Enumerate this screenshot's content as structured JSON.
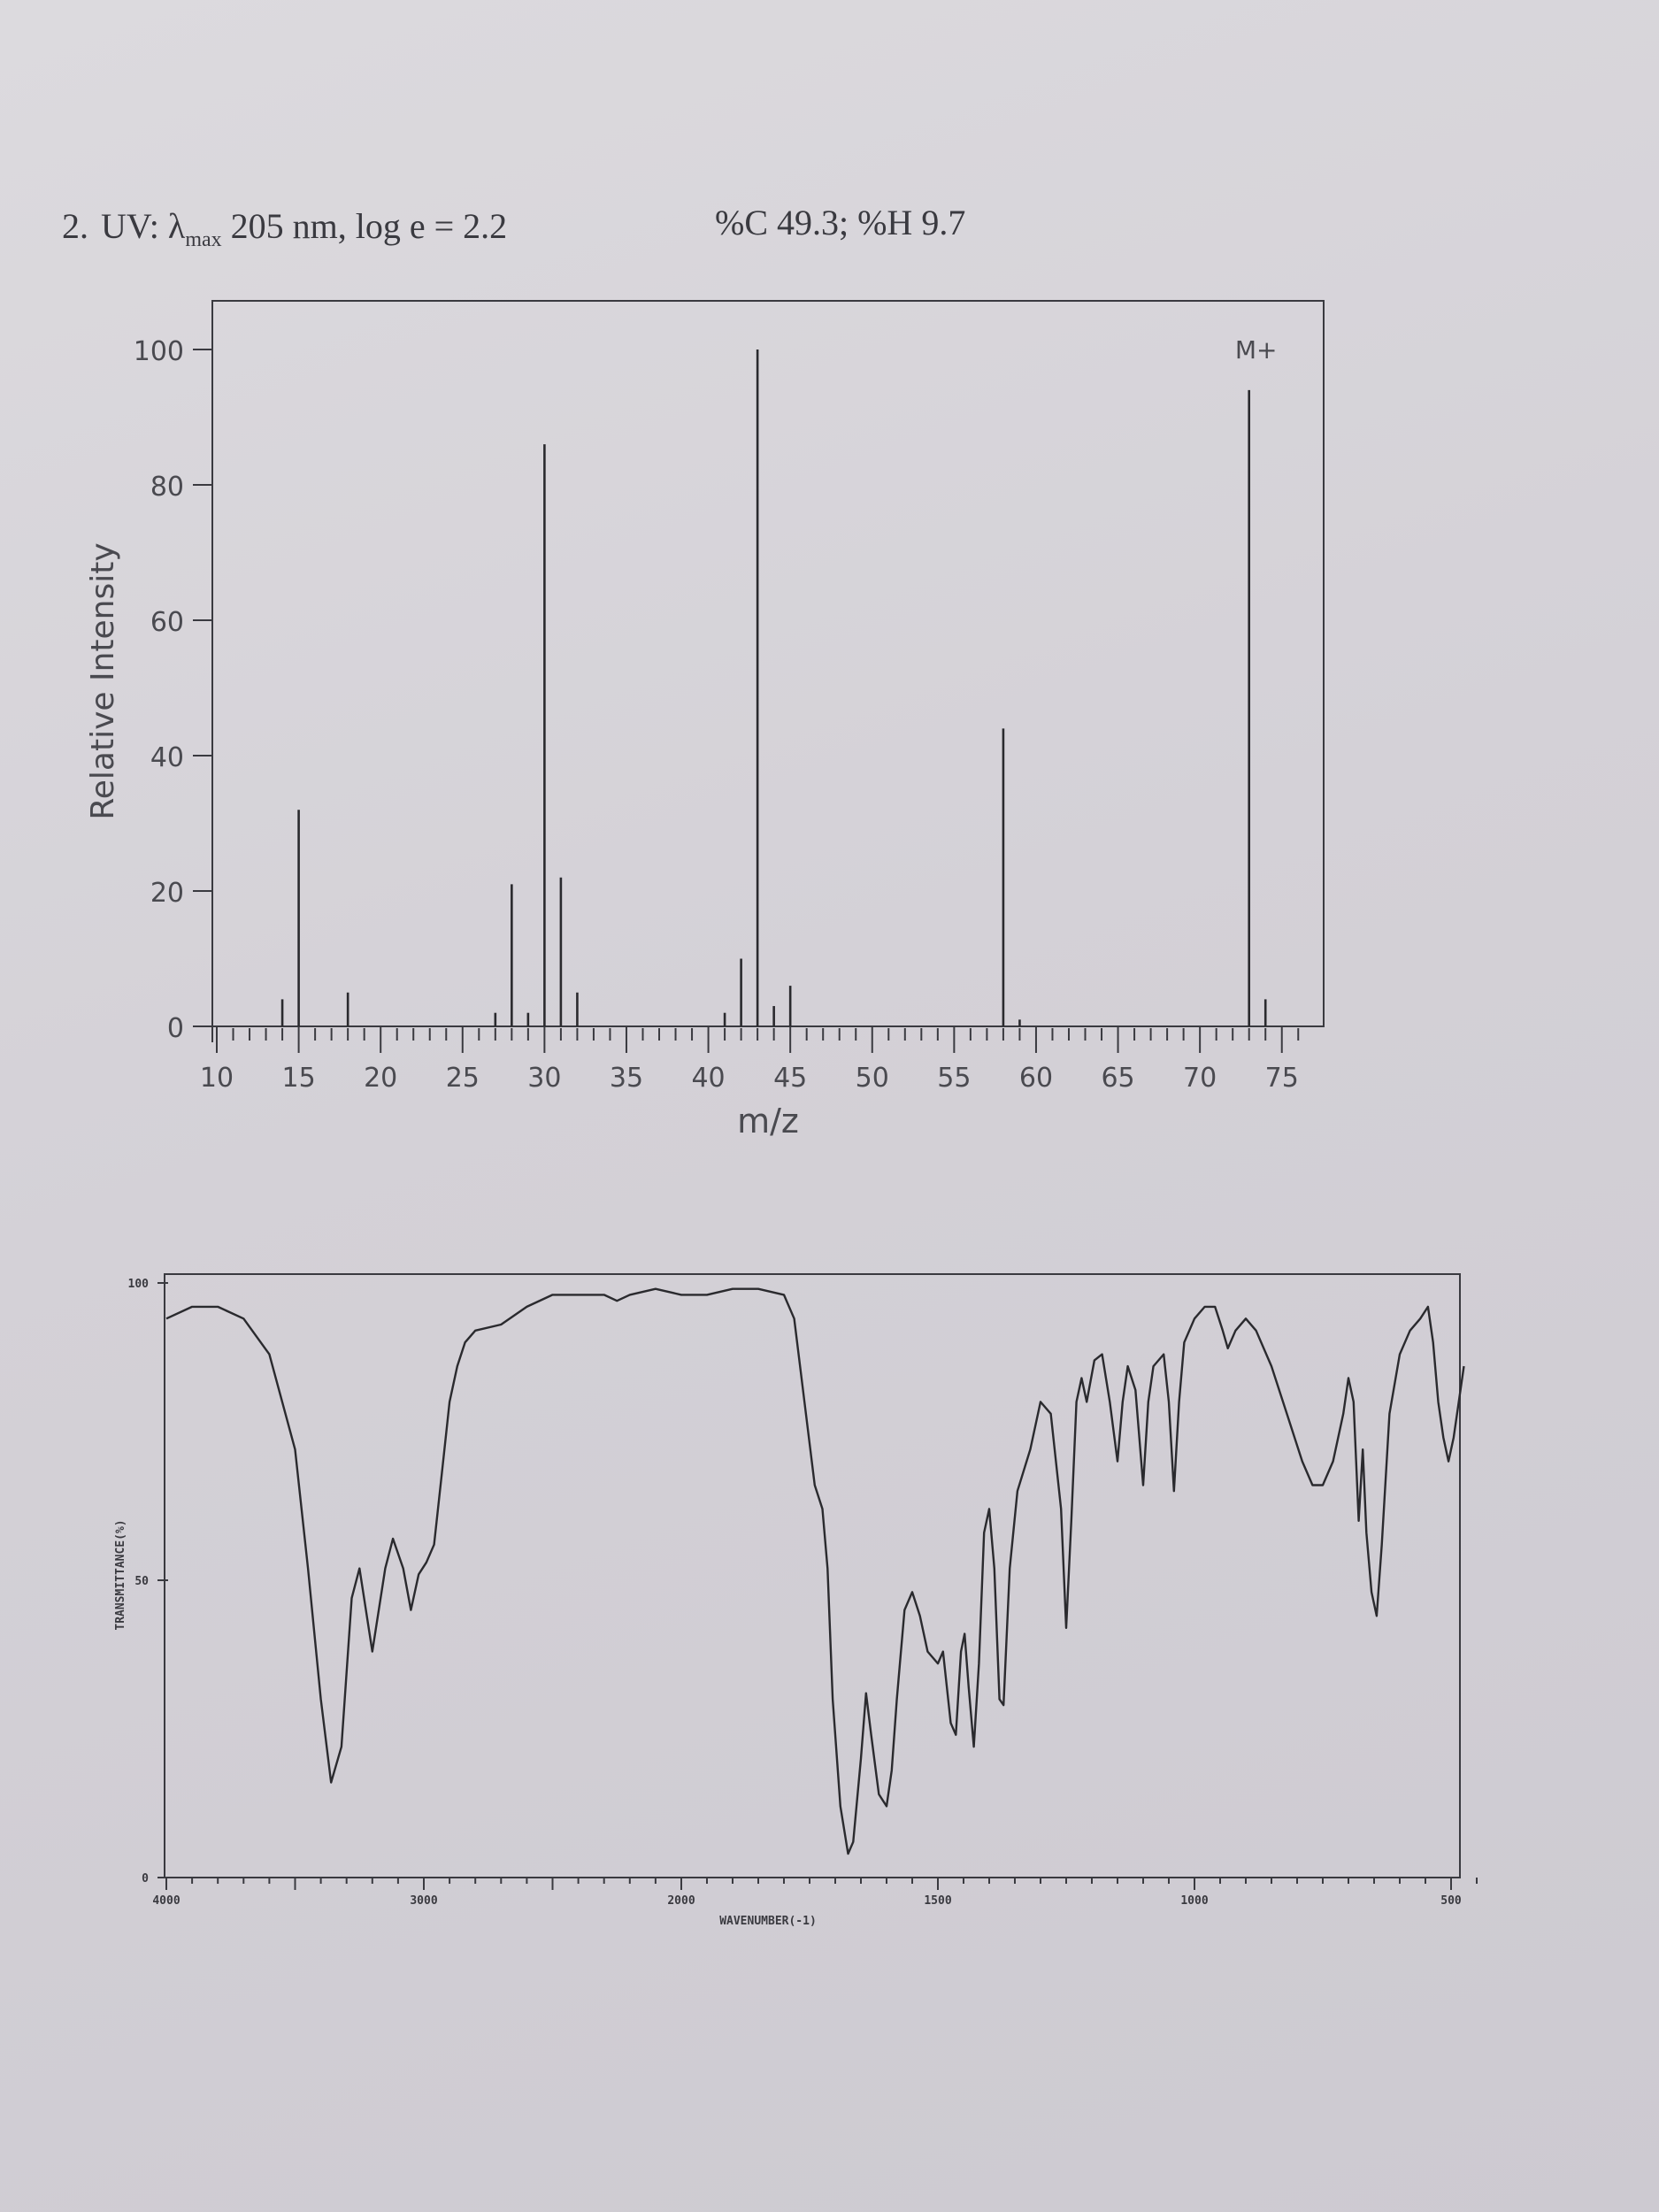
{
  "header": {
    "question_number": "2.",
    "uv_label": "UV: λ",
    "uv_sub": "max",
    "uv_rest": " 205 nm, log e = 2.2",
    "elemental": "%C 49.3; %H 9.7"
  },
  "chart_data": [
    {
      "type": "bar",
      "xlabel": "m/z",
      "ylabel": "Relative Intensity",
      "xlim": [
        10,
        76
      ],
      "ylim": [
        0,
        100
      ],
      "xticks": [
        10,
        15,
        20,
        25,
        30,
        35,
        40,
        45,
        50,
        55,
        60,
        65,
        70,
        75
      ],
      "yticks": [
        0,
        20,
        40,
        60,
        80,
        100
      ],
      "annotation": "M+",
      "annotation_mz": 73,
      "peaks": [
        {
          "mz": 14,
          "intensity": 4
        },
        {
          "mz": 15,
          "intensity": 32
        },
        {
          "mz": 18,
          "intensity": 5
        },
        {
          "mz": 27,
          "intensity": 2
        },
        {
          "mz": 28,
          "intensity": 21
        },
        {
          "mz": 29,
          "intensity": 2
        },
        {
          "mz": 30,
          "intensity": 86
        },
        {
          "mz": 31,
          "intensity": 22
        },
        {
          "mz": 32,
          "intensity": 5
        },
        {
          "mz": 41,
          "intensity": 2
        },
        {
          "mz": 42,
          "intensity": 10
        },
        {
          "mz": 43,
          "intensity": 100
        },
        {
          "mz": 44,
          "intensity": 3
        },
        {
          "mz": 45,
          "intensity": 6
        },
        {
          "mz": 58,
          "intensity": 44
        },
        {
          "mz": 59,
          "intensity": 1
        },
        {
          "mz": 73,
          "intensity": 94
        },
        {
          "mz": 74,
          "intensity": 4
        }
      ]
    },
    {
      "type": "line",
      "xlabel": "WAVENUMBER(-1)",
      "ylabel": "TRANSMITTANCE(%)",
      "xlim": [
        4000,
        400
      ],
      "ylim": [
        0,
        100
      ],
      "xticks": [
        4000,
        3000,
        2000,
        1500,
        1000,
        500
      ],
      "yticks": [
        0,
        50,
        100
      ],
      "points": [
        [
          4000,
          94
        ],
        [
          3900,
          96
        ],
        [
          3800,
          96
        ],
        [
          3700,
          94
        ],
        [
          3600,
          88
        ],
        [
          3500,
          72
        ],
        [
          3450,
          52
        ],
        [
          3400,
          30
        ],
        [
          3360,
          16
        ],
        [
          3320,
          22
        ],
        [
          3280,
          47
        ],
        [
          3250,
          52
        ],
        [
          3200,
          38
        ],
        [
          3150,
          52
        ],
        [
          3120,
          57
        ],
        [
          3080,
          52
        ],
        [
          3050,
          45
        ],
        [
          3020,
          51
        ],
        [
          2990,
          53
        ],
        [
          2960,
          56
        ],
        [
          2930,
          68
        ],
        [
          2900,
          80
        ],
        [
          2870,
          86
        ],
        [
          2840,
          90
        ],
        [
          2800,
          92
        ],
        [
          2700,
          93
        ],
        [
          2600,
          96
        ],
        [
          2500,
          98
        ],
        [
          2400,
          98
        ],
        [
          2300,
          98
        ],
        [
          2250,
          97
        ],
        [
          2200,
          98
        ],
        [
          2100,
          99
        ],
        [
          2000,
          98
        ],
        [
          1950,
          98
        ],
        [
          1900,
          99
        ],
        [
          1850,
          99
        ],
        [
          1800,
          98
        ],
        [
          1780,
          94
        ],
        [
          1760,
          80
        ],
        [
          1740,
          66
        ],
        [
          1725,
          62
        ],
        [
          1715,
          52
        ],
        [
          1705,
          30
        ],
        [
          1690,
          12
        ],
        [
          1675,
          4
        ],
        [
          1665,
          6
        ],
        [
          1650,
          20
        ],
        [
          1640,
          31
        ],
        [
          1630,
          24
        ],
        [
          1615,
          14
        ],
        [
          1600,
          12
        ],
        [
          1590,
          18
        ],
        [
          1580,
          30
        ],
        [
          1565,
          45
        ],
        [
          1550,
          48
        ],
        [
          1535,
          44
        ],
        [
          1520,
          38
        ],
        [
          1500,
          36
        ],
        [
          1490,
          38
        ],
        [
          1475,
          26
        ],
        [
          1465,
          24
        ],
        [
          1455,
          38
        ],
        [
          1448,
          41
        ],
        [
          1440,
          32
        ],
        [
          1430,
          22
        ],
        [
          1420,
          36
        ],
        [
          1410,
          58
        ],
        [
          1400,
          62
        ],
        [
          1390,
          52
        ],
        [
          1380,
          30
        ],
        [
          1372,
          29
        ],
        [
          1360,
          52
        ],
        [
          1345,
          65
        ],
        [
          1320,
          72
        ],
        [
          1300,
          80
        ],
        [
          1280,
          78
        ],
        [
          1260,
          62
        ],
        [
          1250,
          42
        ],
        [
          1240,
          60
        ],
        [
          1230,
          80
        ],
        [
          1220,
          84
        ],
        [
          1210,
          80
        ],
        [
          1195,
          87
        ],
        [
          1180,
          88
        ],
        [
          1165,
          80
        ],
        [
          1150,
          70
        ],
        [
          1140,
          80
        ],
        [
          1130,
          86
        ],
        [
          1115,
          82
        ],
        [
          1100,
          66
        ],
        [
          1090,
          80
        ],
        [
          1080,
          86
        ],
        [
          1060,
          88
        ],
        [
          1050,
          80
        ],
        [
          1040,
          65
        ],
        [
          1030,
          80
        ],
        [
          1020,
          90
        ],
        [
          1000,
          94
        ],
        [
          980,
          96
        ],
        [
          960,
          96
        ],
        [
          945,
          92
        ],
        [
          935,
          89
        ],
        [
          920,
          92
        ],
        [
          900,
          94
        ],
        [
          880,
          92
        ],
        [
          850,
          86
        ],
        [
          820,
          78
        ],
        [
          790,
          70
        ],
        [
          770,
          66
        ],
        [
          750,
          66
        ],
        [
          730,
          70
        ],
        [
          710,
          78
        ],
        [
          700,
          84
        ],
        [
          690,
          80
        ],
        [
          680,
          60
        ],
        [
          672,
          72
        ],
        [
          665,
          58
        ],
        [
          655,
          48
        ],
        [
          645,
          44
        ],
        [
          635,
          56
        ],
        [
          620,
          78
        ],
        [
          600,
          88
        ],
        [
          580,
          92
        ],
        [
          560,
          94
        ],
        [
          545,
          96
        ],
        [
          535,
          90
        ],
        [
          525,
          80
        ],
        [
          515,
          74
        ],
        [
          505,
          70
        ],
        [
          495,
          74
        ],
        [
          485,
          80
        ],
        [
          475,
          86
        ]
      ]
    }
  ],
  "ms_mark_colors": {
    "line": "#2a2a2e",
    "axis": "#3a3a40"
  }
}
